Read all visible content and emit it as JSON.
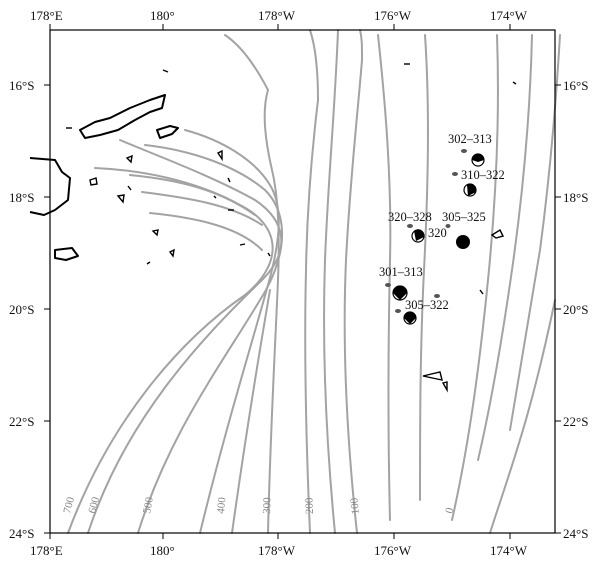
{
  "map": {
    "top_ticks": [
      "178°E",
      "180°",
      "178°W",
      "176°W",
      "174°W"
    ],
    "bottom_ticks": [
      "178°E",
      "180°",
      "178°W",
      "176°W",
      "174°W"
    ],
    "left_ticks": [
      "16°S",
      "18°S",
      "20°S",
      "22°S",
      "24°S"
    ],
    "right_ticks": [
      "16°S",
      "18°S",
      "20°S",
      "22°S",
      "24°S"
    ],
    "contour_labels": [
      "700",
      "600",
      "500",
      "400",
      "300",
      "200",
      "100",
      "0"
    ],
    "event_labels": [
      "302–313",
      "310–322",
      "320–328",
      "320",
      "305–325",
      "301–313",
      "305–322"
    ]
  }
}
